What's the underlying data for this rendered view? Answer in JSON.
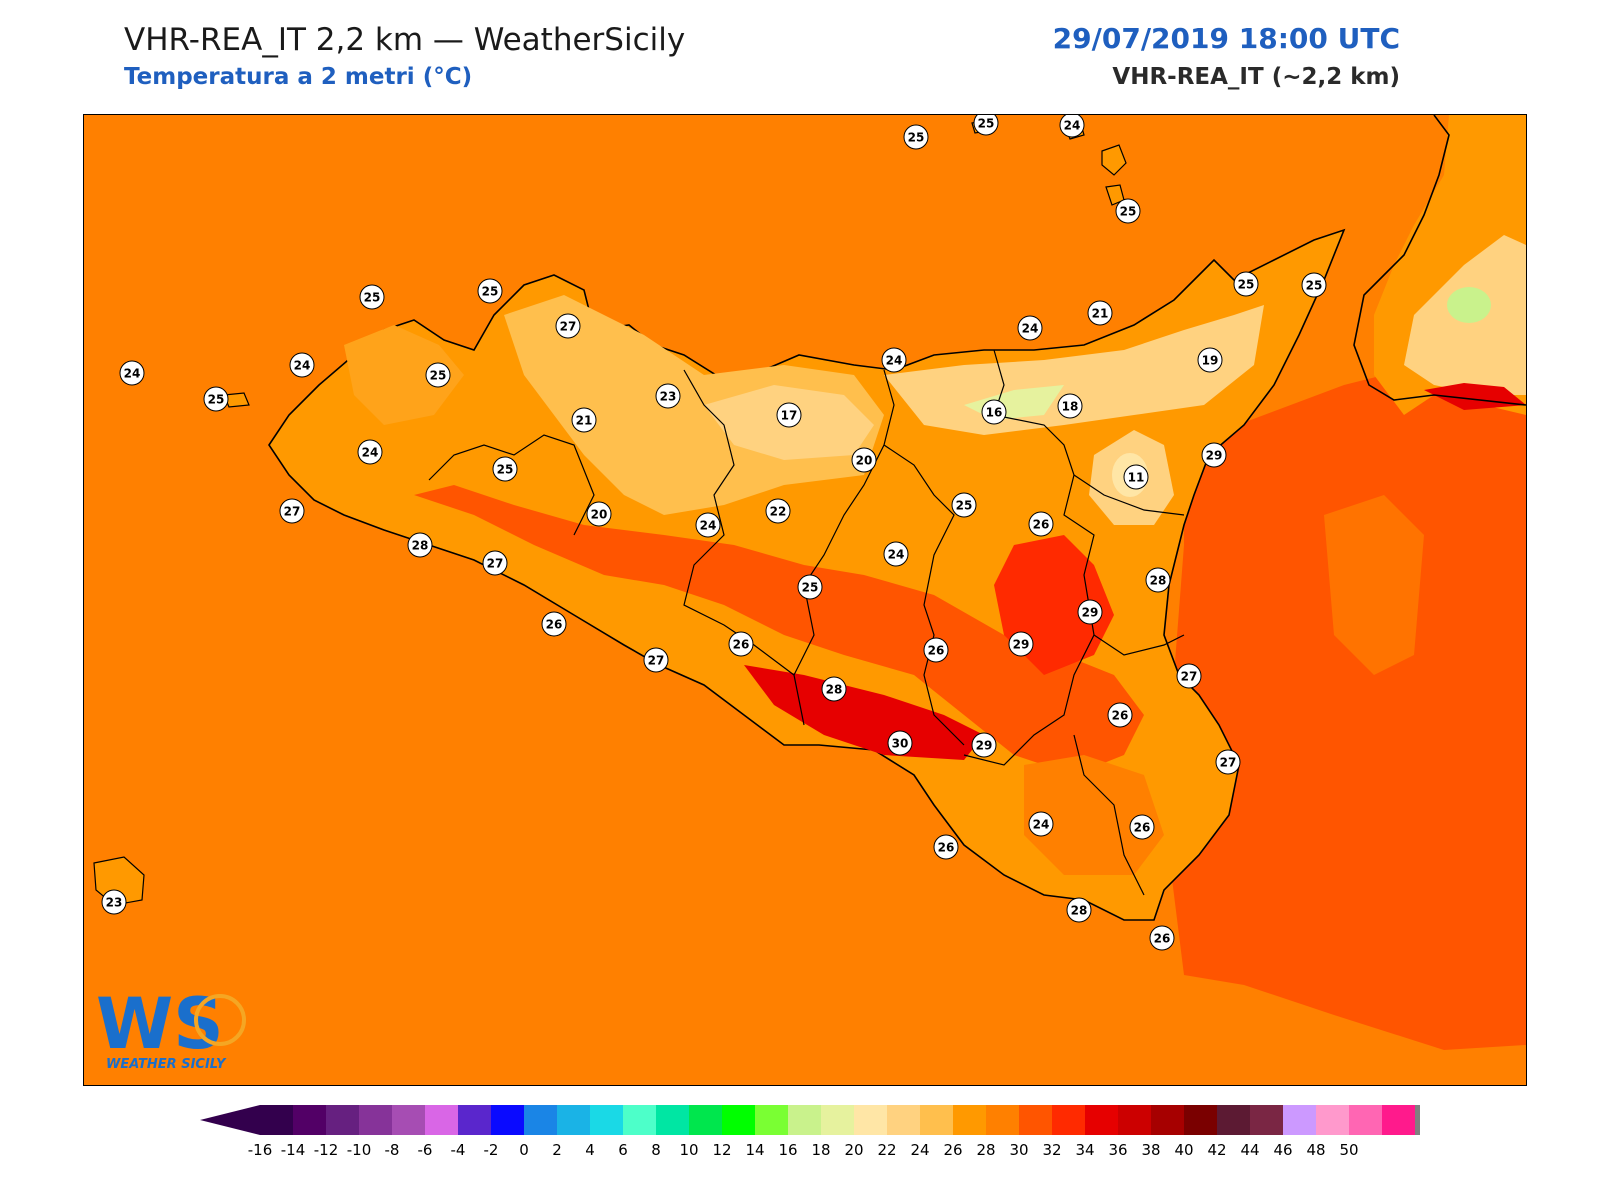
{
  "header": {
    "title": "VHR-REA_IT 2,2 km — WeatherSicily",
    "subtitle": "Temperatura a 2 metri (°C)",
    "datetime": "29/07/2019 18:00 UTC",
    "model": "VHR-REA_IT (~2,2 km)"
  },
  "logo": {
    "text": "WEATHER SICILY",
    "letters": "WS"
  },
  "colors": {
    "sea": "#ff8000",
    "hot": "#ff4d00",
    "very_hot": "#ff2a00",
    "hottest": "#e60000",
    "mild": "#ffa31a",
    "cool": "#ffc24d",
    "cooler": "#ffd98c",
    "coolest": "#c9e88c"
  },
  "colorbar": {
    "labels": [
      "-16",
      "-14",
      "-12",
      "-10",
      "-8",
      "-6",
      "-4",
      "-2",
      "0",
      "2",
      "4",
      "6",
      "8",
      "10",
      "12",
      "14",
      "16",
      "18",
      "20",
      "22",
      "24",
      "26",
      "28",
      "30",
      "32",
      "34",
      "36",
      "38",
      "40",
      "42",
      "44",
      "46",
      "48",
      "50"
    ],
    "colors": [
      "#33004d",
      "#520066",
      "#662080",
      "#863399",
      "#a64db3",
      "#d966e6",
      "#5a26cc",
      "#0a0aff",
      "#1a85e6",
      "#1ab3e6",
      "#1ad9e6",
      "#4dffc9",
      "#00e6a3",
      "#00e64d",
      "#00ff00",
      "#7aff33",
      "#c9f28c",
      "#e6f29e",
      "#ffe6a6",
      "#ffd280",
      "#ffbf4d",
      "#ff9900",
      "#ff8000",
      "#ff5500",
      "#ff2a00",
      "#e60000",
      "#cc0000",
      "#a60000",
      "#7a0000",
      "#5c1a33",
      "#7a2644",
      "#cc99ff",
      "#ff99cc",
      "#ff66b3",
      "#ff1a8c",
      "#808080",
      "#333333"
    ]
  },
  "stations": [
    {
      "v": "25"
    },
    {
      "v": "25"
    },
    {
      "v": "24"
    },
    {
      "v": "25"
    },
    {
      "v": "25"
    },
    {
      "v": "25"
    },
    {
      "v": "27"
    },
    {
      "v": "25"
    },
    {
      "v": "24"
    },
    {
      "v": "24"
    },
    {
      "v": "25"
    },
    {
      "v": "25"
    },
    {
      "v": "23"
    },
    {
      "v": "21"
    },
    {
      "v": "17"
    },
    {
      "v": "24"
    },
    {
      "v": "24"
    },
    {
      "v": "21"
    },
    {
      "v": "19"
    },
    {
      "v": "16"
    },
    {
      "v": "18"
    },
    {
      "v": "24"
    },
    {
      "v": "25"
    },
    {
      "v": "20"
    },
    {
      "v": "29"
    },
    {
      "v": "11"
    },
    {
      "v": "25"
    },
    {
      "v": "20"
    },
    {
      "v": "24"
    },
    {
      "v": "22"
    },
    {
      "v": "25"
    },
    {
      "v": "26"
    },
    {
      "v": "28"
    },
    {
      "v": "27"
    },
    {
      "v": "24"
    },
    {
      "v": "28"
    },
    {
      "v": "25"
    },
    {
      "v": "29"
    },
    {
      "v": "26"
    },
    {
      "v": "26"
    },
    {
      "v": "29"
    },
    {
      "v": "27"
    },
    {
      "v": "26"
    },
    {
      "v": "27"
    },
    {
      "v": "28"
    },
    {
      "v": "26"
    },
    {
      "v": "27"
    },
    {
      "v": "30"
    },
    {
      "v": "29"
    },
    {
      "v": "27"
    },
    {
      "v": "24"
    },
    {
      "v": "26"
    },
    {
      "v": "26"
    },
    {
      "v": "23"
    },
    {
      "v": "28"
    },
    {
      "v": "26"
    }
  ]
}
